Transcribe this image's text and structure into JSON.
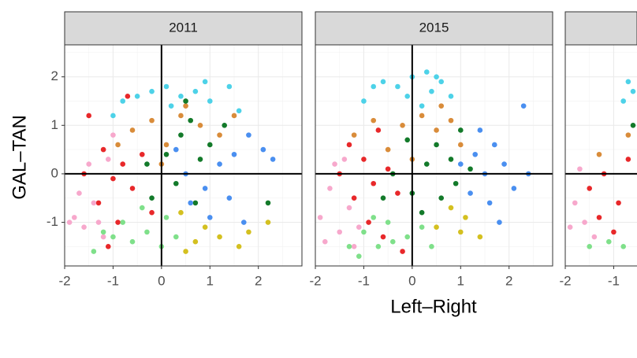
{
  "chart_data": {
    "type": "scatter",
    "xlabel": "Left–Right",
    "ylabel": "GAL–TAN",
    "xlim": [
      -2,
      2.9
    ],
    "ylim": [
      -1.9,
      2.66
    ],
    "xticks": [
      -2,
      -1,
      0,
      1,
      2
    ],
    "yticks": [
      -1,
      0,
      1,
      2
    ],
    "grid": true,
    "vline": 0,
    "hline": 0,
    "facets": [
      {
        "title": "2011",
        "series": [
          {
            "color": "#4dd2e8",
            "x": [
              -0.8,
              -0.5,
              -0.2,
              0.1,
              0.4,
              0.7,
              1.0,
              1.4,
              -1.0,
              0.2,
              1.6,
              0.9
            ],
            "values": [
              1.5,
              1.6,
              1.7,
              1.8,
              1.6,
              1.7,
              1.5,
              1.8,
              1.2,
              1.4,
              1.3,
              1.9
            ]
          },
          {
            "color": "#d98c3a",
            "x": [
              -0.6,
              -0.2,
              0.1,
              0.4,
              0.8,
              1.2,
              -0.9,
              0.5,
              1.5,
              0.0
            ],
            "values": [
              0.9,
              1.1,
              0.6,
              1.2,
              1.0,
              0.8,
              0.6,
              1.4,
              1.2,
              0.2
            ]
          },
          {
            "color": "#137a2a",
            "x": [
              0.1,
              0.4,
              0.6,
              0.8,
              1.0,
              -0.3,
              0.3,
              1.3,
              0.7,
              -0.2,
              2.2,
              0.5
            ],
            "values": [
              0.4,
              0.8,
              1.1,
              0.3,
              0.6,
              0.2,
              -0.2,
              1.0,
              -0.6,
              -0.5,
              -0.6,
              1.5
            ]
          },
          {
            "color": "#4a8ff0",
            "x": [
              0.5,
              0.9,
              1.2,
              1.5,
              1.8,
              2.1,
              1.0,
              0.6,
              1.4,
              2.3,
              0.3,
              1.7
            ],
            "values": [
              0.0,
              -0.3,
              0.2,
              0.4,
              0.8,
              0.5,
              -0.9,
              -0.6,
              -0.5,
              0.3,
              0.5,
              -1.0
            ]
          },
          {
            "color": "#e8282a",
            "x": [
              -1.5,
              -1.2,
              -1.0,
              -0.8,
              -0.6,
              -1.3,
              -0.4,
              -0.9,
              -0.2,
              -1.1,
              -0.7,
              -1.6
            ],
            "values": [
              1.2,
              0.5,
              -0.1,
              0.2,
              -0.3,
              -0.6,
              0.4,
              -1.0,
              -0.8,
              -1.5,
              1.6,
              0.0
            ]
          },
          {
            "color": "#f7a8cc",
            "x": [
              -1.8,
              -1.6,
              -1.4,
              -1.2,
              -1.7,
              -1.5,
              -1.0,
              -1.3,
              -1.9,
              -1.1
            ],
            "values": [
              -0.9,
              -1.1,
              -0.6,
              -1.3,
              -0.4,
              0.2,
              0.8,
              -1.0,
              -1.0,
              0.3
            ]
          },
          {
            "color": "#7fe08a",
            "x": [
              -1.4,
              -1.0,
              -0.6,
              -0.3,
              0.0,
              -0.8,
              -0.4,
              0.3,
              -1.2,
              0.1
            ],
            "values": [
              -1.6,
              -1.3,
              -1.4,
              -1.2,
              -1.5,
              -1.0,
              -0.7,
              -1.3,
              -1.2,
              -0.9
            ]
          },
          {
            "color": "#d4c020",
            "x": [
              0.5,
              0.9,
              1.2,
              1.6,
              0.4,
              2.2,
              1.8,
              0.7
            ],
            "values": [
              -1.6,
              -1.1,
              -1.3,
              -1.5,
              -0.8,
              -1.0,
              -1.2,
              -1.4
            ]
          }
        ]
      },
      {
        "title": "2015",
        "series": [
          {
            "color": "#4dd2e8",
            "x": [
              -1.0,
              -0.6,
              -0.3,
              0.0,
              0.3,
              0.6,
              -0.1,
              0.4,
              0.8,
              -0.8,
              0.2,
              0.5
            ],
            "values": [
              1.5,
              1.9,
              1.8,
              2.0,
              2.1,
              1.9,
              1.6,
              1.7,
              1.6,
              1.8,
              1.4,
              2.0
            ]
          },
          {
            "color": "#d98c3a",
            "x": [
              -1.2,
              -0.5,
              -0.2,
              0.2,
              0.5,
              0.8,
              1.0,
              0.0,
              -0.8,
              0.6
            ],
            "values": [
              0.8,
              0.5,
              1.0,
              1.2,
              0.9,
              1.1,
              0.6,
              0.3,
              1.1,
              1.4
            ]
          },
          {
            "color": "#137a2a",
            "x": [
              -0.4,
              0.0,
              0.3,
              0.5,
              0.8,
              1.0,
              -0.1,
              0.6,
              1.2,
              0.2,
              -0.6,
              0.9
            ],
            "values": [
              0.0,
              -0.4,
              0.2,
              0.6,
              0.3,
              0.9,
              0.7,
              -0.5,
              0.1,
              -0.8,
              -0.5,
              -0.2
            ]
          },
          {
            "color": "#4a8ff0",
            "x": [
              1.0,
              1.3,
              1.5,
              1.7,
              1.9,
              2.1,
              1.2,
              1.6,
              2.3,
              1.8,
              1.4,
              2.4
            ],
            "values": [
              0.2,
              0.4,
              0.0,
              0.6,
              0.2,
              -0.3,
              -0.4,
              -0.6,
              1.4,
              -1.0,
              0.9,
              0.0
            ]
          },
          {
            "color": "#e8282a",
            "x": [
              -1.3,
              -1.0,
              -0.8,
              -1.2,
              -0.5,
              -0.3,
              -0.9,
              -0.6,
              -1.5,
              -0.2,
              -0.7
            ],
            "values": [
              0.6,
              0.3,
              -0.2,
              -0.5,
              0.1,
              -0.4,
              -1.0,
              -1.3,
              0.0,
              -1.6,
              0.9
            ]
          },
          {
            "color": "#f7a8cc",
            "x": [
              -1.9,
              -1.7,
              -1.5,
              -1.3,
              -1.6,
              -1.8,
              -1.1,
              -1.4,
              -1.2
            ],
            "values": [
              -0.9,
              -0.3,
              -1.2,
              -0.7,
              0.2,
              -1.4,
              -1.1,
              0.3,
              -1.5
            ]
          },
          {
            "color": "#7fe08a",
            "x": [
              -1.3,
              -1.0,
              -0.7,
              -0.4,
              -0.1,
              0.2,
              -0.8,
              0.4,
              -0.5,
              -1.1
            ],
            "values": [
              -1.5,
              -1.2,
              -1.5,
              -1.4,
              -1.3,
              -1.1,
              -0.9,
              -1.5,
              -1.0,
              -1.7
            ]
          },
          {
            "color": "#d4c020",
            "x": [
              0.8,
              1.0,
              1.1,
              0.5,
              1.4
            ],
            "values": [
              -0.7,
              -1.2,
              -0.9,
              -1.1,
              -1.3
            ]
          }
        ]
      },
      {
        "series": [
          {
            "color": "#4dd2e8",
            "x": [
              -0.7,
              -0.8,
              -0.6
            ],
            "values": [
              1.9,
              1.5,
              1.7
            ]
          },
          {
            "color": "#d98c3a",
            "x": [
              -1.3,
              -0.7
            ],
            "values": [
              0.4,
              0.8
            ]
          },
          {
            "color": "#137a2a",
            "x": [
              -0.6
            ],
            "values": [
              1.0
            ]
          },
          {
            "color": "#e8282a",
            "x": [
              -1.5,
              -1.2,
              -0.9,
              -1.0,
              -0.7,
              -1.3
            ],
            "values": [
              -0.3,
              0.0,
              -0.6,
              -1.2,
              0.3,
              -0.9
            ]
          },
          {
            "color": "#f7a8cc",
            "x": [
              -1.8,
              -1.6,
              -1.7,
              -1.4,
              -1.9
            ],
            "values": [
              -0.6,
              -1.0,
              0.1,
              -1.3,
              -1.1
            ]
          },
          {
            "color": "#7fe08a",
            "x": [
              -1.5,
              -1.1,
              -0.8
            ],
            "values": [
              -1.5,
              -1.4,
              -1.5
            ]
          }
        ]
      }
    ]
  }
}
